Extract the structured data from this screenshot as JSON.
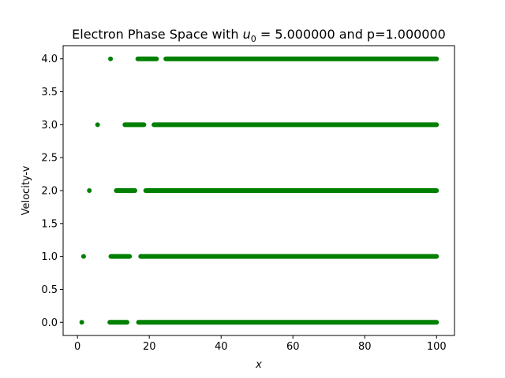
{
  "chart_data": {
    "type": "scatter",
    "title_prefix": "Electron Phase Space with ",
    "title_math_var": "u",
    "title_math_sub": "0",
    "title_suffix": " = 5.000000 and p=1.000000",
    "xlabel": "x",
    "ylabel": "Velocity-v",
    "xlim": [
      -4,
      105
    ],
    "ylim": [
      -0.2,
      4.2
    ],
    "xticks": [
      0,
      20,
      40,
      60,
      80,
      100
    ],
    "yticks": [
      0.0,
      0.5,
      1.0,
      1.5,
      2.0,
      2.5,
      3.0,
      3.5,
      4.0
    ],
    "xtick_labels": [
      "0",
      "20",
      "40",
      "60",
      "80",
      "100"
    ],
    "ytick_labels": [
      "0.0",
      "0.5",
      "1.0",
      "1.5",
      "2.0",
      "2.5",
      "3.0",
      "3.5",
      "4.0"
    ],
    "grid": false,
    "marker_color": "#008000",
    "series": [
      {
        "v": 0,
        "points": [
          1.2
        ],
        "segments": [
          [
            9.0,
            13.8
          ],
          [
            17.0,
            100.0
          ]
        ]
      },
      {
        "v": 1,
        "points": [
          1.7
        ],
        "segments": [
          [
            9.3,
            14.5
          ],
          [
            17.6,
            100.0
          ]
        ]
      },
      {
        "v": 2,
        "points": [
          3.3
        ],
        "segments": [
          [
            10.8,
            16.0
          ],
          [
            19.0,
            100.0
          ]
        ]
      },
      {
        "v": 3,
        "points": [
          5.6
        ],
        "segments": [
          [
            13.2,
            18.5
          ],
          [
            21.3,
            100.0
          ]
        ]
      },
      {
        "v": 4,
        "points": [
          9.2
        ],
        "segments": [
          [
            16.8,
            22.0
          ],
          [
            24.6,
            100.0
          ]
        ]
      }
    ]
  }
}
